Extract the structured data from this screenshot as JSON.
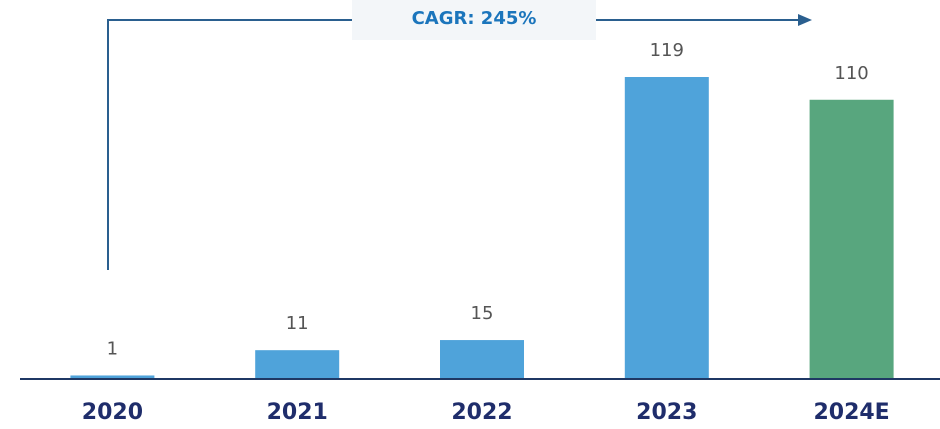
{
  "chart_data": {
    "type": "bar",
    "annotation": "CAGR: 245%",
    "categories": [
      "2020",
      "2021",
      "2022",
      "2023",
      "2024E"
    ],
    "values": [
      1,
      11,
      15,
      119,
      110
    ],
    "colors": [
      "#4fa3da",
      "#4fa3da",
      "#4fa3da",
      "#4fa3da",
      "#58a67e"
    ]
  }
}
